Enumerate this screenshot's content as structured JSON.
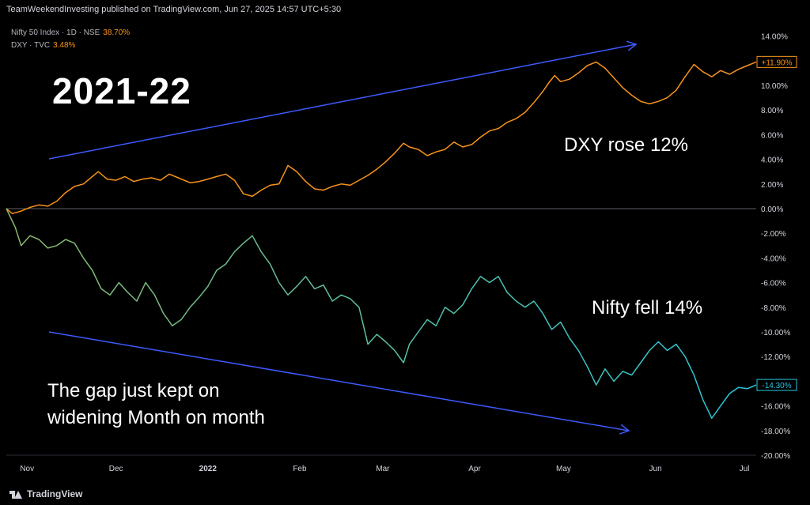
{
  "header": {
    "published": "TeamWeekendInvesting published on TradingView.com, Jun 27, 2025 14:57 UTC+5:30"
  },
  "legend": [
    {
      "name": "Nifty 50 Index · 1D · NSE",
      "value": "38.70%"
    },
    {
      "name": "DXY · TVC",
      "value": "3.48%"
    }
  ],
  "annotations": {
    "title": "2021-22",
    "dxy": "DXY rose 12%",
    "nifty": "Nifty fell 14%",
    "gap_line1": "The gap just kept on",
    "gap_line2": "widening Month on month"
  },
  "footer": {
    "brand": "TradingView"
  },
  "colors": {
    "dxy": "#f7931a",
    "nifty_start": "#8ab86a",
    "nifty_end": "#26c6da",
    "arrow": "#3d5afe",
    "zero": "#787b86"
  },
  "chart_data": {
    "type": "line",
    "x_range": [
      "2021-10-25",
      "2022-07-05"
    ],
    "x_ticks": [
      {
        "label": "Nov",
        "date": "2021-11-01"
      },
      {
        "label": "Dec",
        "date": "2021-12-01"
      },
      {
        "label": "2022",
        "date": "2022-01-01"
      },
      {
        "label": "Feb",
        "date": "2022-02-01"
      },
      {
        "label": "Mar",
        "date": "2022-03-01"
      },
      {
        "label": "Apr",
        "date": "2022-04-01"
      },
      {
        "label": "May",
        "date": "2022-05-01"
      },
      {
        "label": "Jun",
        "date": "2022-06-01"
      },
      {
        "label": "Jul",
        "date": "2022-07-01"
      }
    ],
    "y_unit": "%",
    "y_range": [
      -20,
      15
    ],
    "y_ticks": [
      "14.00%",
      "12.00%",
      "10.00%",
      "8.00%",
      "6.00%",
      "4.00%",
      "2.00%",
      "0.00%",
      "-2.00%",
      "-4.00%",
      "-6.00%",
      "-8.00%",
      "-10.00%",
      "-12.00%",
      "-14.00%",
      "-16.00%",
      "-18.00%",
      "-20.00%"
    ],
    "series": [
      {
        "name": "DXY",
        "last_label": "+11.90%",
        "points": [
          [
            "2021-10-25",
            0.0
          ],
          [
            "2021-10-27",
            -0.4
          ],
          [
            "2021-10-30",
            -0.2
          ],
          [
            "2021-11-02",
            0.1
          ],
          [
            "2021-11-05",
            0.3
          ],
          [
            "2021-11-08",
            0.2
          ],
          [
            "2021-11-11",
            0.6
          ],
          [
            "2021-11-14",
            1.3
          ],
          [
            "2021-11-17",
            1.8
          ],
          [
            "2021-11-20",
            2.0
          ],
          [
            "2021-11-23",
            2.6
          ],
          [
            "2021-11-25",
            3.0
          ],
          [
            "2021-11-28",
            2.4
          ],
          [
            "2021-12-01",
            2.3
          ],
          [
            "2021-12-04",
            2.6
          ],
          [
            "2021-12-07",
            2.2
          ],
          [
            "2021-12-10",
            2.4
          ],
          [
            "2021-12-13",
            2.5
          ],
          [
            "2021-12-16",
            2.3
          ],
          [
            "2021-12-19",
            2.8
          ],
          [
            "2021-12-22",
            2.5
          ],
          [
            "2021-12-26",
            2.1
          ],
          [
            "2021-12-29",
            2.2
          ],
          [
            "2022-01-01",
            2.4
          ],
          [
            "2022-01-04",
            2.6
          ],
          [
            "2022-01-07",
            2.8
          ],
          [
            "2022-01-10",
            2.3
          ],
          [
            "2022-01-13",
            1.2
          ],
          [
            "2022-01-16",
            1.0
          ],
          [
            "2022-01-19",
            1.5
          ],
          [
            "2022-01-22",
            1.9
          ],
          [
            "2022-01-25",
            2.0
          ],
          [
            "2022-01-28",
            3.5
          ],
          [
            "2022-01-31",
            3.0
          ],
          [
            "2022-02-03",
            2.2
          ],
          [
            "2022-02-06",
            1.6
          ],
          [
            "2022-02-09",
            1.5
          ],
          [
            "2022-02-12",
            1.8
          ],
          [
            "2022-02-15",
            2.0
          ],
          [
            "2022-02-18",
            1.9
          ],
          [
            "2022-02-21",
            2.3
          ],
          [
            "2022-02-24",
            2.7
          ],
          [
            "2022-02-27",
            3.2
          ],
          [
            "2022-03-02",
            3.8
          ],
          [
            "2022-03-05",
            4.5
          ],
          [
            "2022-03-08",
            5.3
          ],
          [
            "2022-03-10",
            5.0
          ],
          [
            "2022-03-13",
            4.8
          ],
          [
            "2022-03-16",
            4.3
          ],
          [
            "2022-03-19",
            4.6
          ],
          [
            "2022-03-22",
            4.8
          ],
          [
            "2022-03-25",
            5.4
          ],
          [
            "2022-03-28",
            5.0
          ],
          [
            "2022-03-31",
            5.2
          ],
          [
            "2022-04-03",
            5.8
          ],
          [
            "2022-04-06",
            6.3
          ],
          [
            "2022-04-09",
            6.5
          ],
          [
            "2022-04-12",
            7.0
          ],
          [
            "2022-04-15",
            7.3
          ],
          [
            "2022-04-18",
            7.8
          ],
          [
            "2022-04-21",
            8.6
          ],
          [
            "2022-04-24",
            9.5
          ],
          [
            "2022-04-26",
            10.2
          ],
          [
            "2022-04-28",
            10.8
          ],
          [
            "2022-04-30",
            10.3
          ],
          [
            "2022-05-03",
            10.5
          ],
          [
            "2022-05-06",
            11.0
          ],
          [
            "2022-05-09",
            11.6
          ],
          [
            "2022-05-12",
            11.9
          ],
          [
            "2022-05-15",
            11.4
          ],
          [
            "2022-05-18",
            10.6
          ],
          [
            "2022-05-21",
            9.8
          ],
          [
            "2022-05-24",
            9.2
          ],
          [
            "2022-05-27",
            8.7
          ],
          [
            "2022-05-30",
            8.5
          ],
          [
            "2022-06-02",
            8.7
          ],
          [
            "2022-06-05",
            9.0
          ],
          [
            "2022-06-08",
            9.6
          ],
          [
            "2022-06-11",
            10.7
          ],
          [
            "2022-06-14",
            11.7
          ],
          [
            "2022-06-17",
            11.1
          ],
          [
            "2022-06-20",
            10.7
          ],
          [
            "2022-06-23",
            11.2
          ],
          [
            "2022-06-26",
            10.9
          ],
          [
            "2022-06-29",
            11.3
          ],
          [
            "2022-07-02",
            11.6
          ],
          [
            "2022-07-05",
            11.9
          ]
        ]
      },
      {
        "name": "Nifty",
        "last_label": "-14.30%",
        "points": [
          [
            "2021-10-25",
            0.0
          ],
          [
            "2021-10-28",
            -1.5
          ],
          [
            "2021-10-30",
            -3.0
          ],
          [
            "2021-11-02",
            -2.2
          ],
          [
            "2021-11-05",
            -2.5
          ],
          [
            "2021-11-08",
            -3.2
          ],
          [
            "2021-11-11",
            -3.0
          ],
          [
            "2021-11-14",
            -2.5
          ],
          [
            "2021-11-17",
            -2.8
          ],
          [
            "2021-11-20",
            -4.0
          ],
          [
            "2021-11-23",
            -5.0
          ],
          [
            "2021-11-26",
            -6.5
          ],
          [
            "2021-11-29",
            -7.0
          ],
          [
            "2021-12-02",
            -6.0
          ],
          [
            "2021-12-05",
            -6.8
          ],
          [
            "2021-12-08",
            -7.5
          ],
          [
            "2021-12-11",
            -6.0
          ],
          [
            "2021-12-14",
            -7.0
          ],
          [
            "2021-12-17",
            -8.5
          ],
          [
            "2021-12-20",
            -9.5
          ],
          [
            "2021-12-23",
            -9.0
          ],
          [
            "2021-12-26",
            -8.0
          ],
          [
            "2021-12-29",
            -7.2
          ],
          [
            "2022-01-01",
            -6.3
          ],
          [
            "2022-01-04",
            -5.0
          ],
          [
            "2022-01-07",
            -4.5
          ],
          [
            "2022-01-10",
            -3.5
          ],
          [
            "2022-01-13",
            -2.8
          ],
          [
            "2022-01-16",
            -2.2
          ],
          [
            "2022-01-19",
            -3.5
          ],
          [
            "2022-01-22",
            -4.5
          ],
          [
            "2022-01-25",
            -6.0
          ],
          [
            "2022-01-28",
            -7.0
          ],
          [
            "2022-01-31",
            -6.3
          ],
          [
            "2022-02-03",
            -5.5
          ],
          [
            "2022-02-06",
            -6.5
          ],
          [
            "2022-02-09",
            -6.2
          ],
          [
            "2022-02-12",
            -7.5
          ],
          [
            "2022-02-15",
            -7.0
          ],
          [
            "2022-02-18",
            -7.3
          ],
          [
            "2022-02-21",
            -8.0
          ],
          [
            "2022-02-24",
            -11.0
          ],
          [
            "2022-02-27",
            -10.2
          ],
          [
            "2022-03-02",
            -10.8
          ],
          [
            "2022-03-05",
            -11.5
          ],
          [
            "2022-03-08",
            -12.5
          ],
          [
            "2022-03-10",
            -11.0
          ],
          [
            "2022-03-13",
            -10.0
          ],
          [
            "2022-03-16",
            -9.0
          ],
          [
            "2022-03-19",
            -9.5
          ],
          [
            "2022-03-22",
            -8.0
          ],
          [
            "2022-03-25",
            -8.5
          ],
          [
            "2022-03-28",
            -7.8
          ],
          [
            "2022-03-31",
            -6.5
          ],
          [
            "2022-04-03",
            -5.5
          ],
          [
            "2022-04-06",
            -6.0
          ],
          [
            "2022-04-09",
            -5.5
          ],
          [
            "2022-04-12",
            -6.8
          ],
          [
            "2022-04-15",
            -7.5
          ],
          [
            "2022-04-18",
            -8.0
          ],
          [
            "2022-04-21",
            -7.5
          ],
          [
            "2022-04-24",
            -8.5
          ],
          [
            "2022-04-27",
            -9.8
          ],
          [
            "2022-04-30",
            -9.2
          ],
          [
            "2022-05-03",
            -10.5
          ],
          [
            "2022-05-06",
            -11.5
          ],
          [
            "2022-05-09",
            -12.8
          ],
          [
            "2022-05-12",
            -14.3
          ],
          [
            "2022-05-15",
            -13.0
          ],
          [
            "2022-05-18",
            -14.0
          ],
          [
            "2022-05-21",
            -13.2
          ],
          [
            "2022-05-24",
            -13.5
          ],
          [
            "2022-05-27",
            -12.5
          ],
          [
            "2022-05-30",
            -11.5
          ],
          [
            "2022-06-02",
            -10.8
          ],
          [
            "2022-06-05",
            -11.5
          ],
          [
            "2022-06-08",
            -11.0
          ],
          [
            "2022-06-11",
            -12.0
          ],
          [
            "2022-06-14",
            -13.5
          ],
          [
            "2022-06-17",
            -15.5
          ],
          [
            "2022-06-20",
            -17.0
          ],
          [
            "2022-06-23",
            -16.0
          ],
          [
            "2022-06-26",
            -15.0
          ],
          [
            "2022-06-29",
            -14.5
          ],
          [
            "2022-07-02",
            -14.6
          ],
          [
            "2022-07-05",
            -14.3
          ]
        ]
      }
    ]
  }
}
